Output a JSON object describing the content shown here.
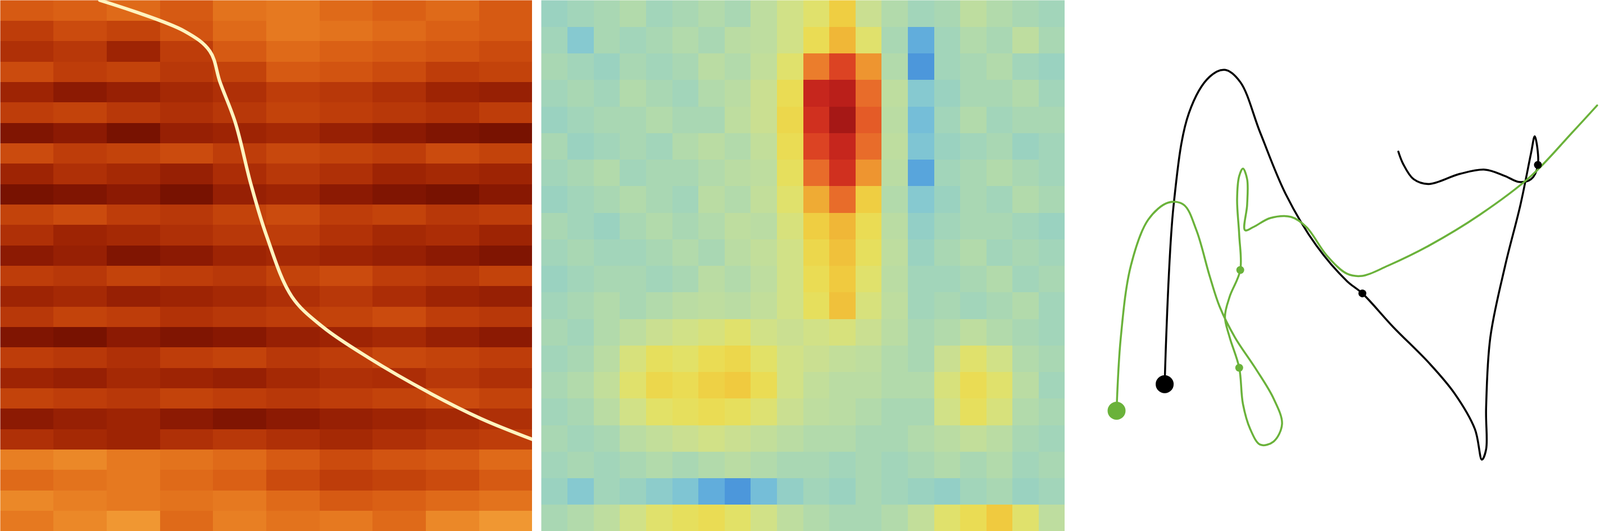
{
  "chart_data": [
    {
      "type": "heatmap",
      "color": "hot",
      "tick_labels": false,
      "xlim": [
        0,
        100
      ],
      "ylim": [
        100,
        0
      ],
      "zlim": [
        0,
        1
      ],
      "cells": [
        [
          0.5,
          0.52,
          0.55,
          0.5,
          0.58,
          0.6,
          0.55,
          0.52,
          0.55,
          0.5
        ],
        [
          0.4,
          0.45,
          0.42,
          0.48,
          0.55,
          0.6,
          0.58,
          0.55,
          0.52,
          0.5
        ],
        [
          0.35,
          0.38,
          0.3,
          0.4,
          0.5,
          0.55,
          0.52,
          0.5,
          0.48,
          0.45
        ],
        [
          0.45,
          0.4,
          0.42,
          0.38,
          0.42,
          0.5,
          0.48,
          0.45,
          0.4,
          0.42
        ],
        [
          0.3,
          0.25,
          0.28,
          0.32,
          0.35,
          0.4,
          0.38,
          0.35,
          0.3,
          0.28
        ],
        [
          0.4,
          0.42,
          0.38,
          0.35,
          0.38,
          0.42,
          0.4,
          0.38,
          0.36,
          0.4
        ],
        [
          0.22,
          0.25,
          0.2,
          0.28,
          0.3,
          0.32,
          0.28,
          0.25,
          0.22,
          0.2
        ],
        [
          0.45,
          0.4,
          0.42,
          0.45,
          0.4,
          0.44,
          0.42,
          0.4,
          0.45,
          0.42
        ],
        [
          0.3,
          0.35,
          0.32,
          0.28,
          0.34,
          0.38,
          0.35,
          0.3,
          0.32,
          0.3
        ],
        [
          0.2,
          0.22,
          0.25,
          0.2,
          0.28,
          0.3,
          0.25,
          0.22,
          0.2,
          0.24
        ],
        [
          0.42,
          0.45,
          0.4,
          0.38,
          0.42,
          0.45,
          0.4,
          0.42,
          0.38,
          0.4
        ],
        [
          0.35,
          0.3,
          0.32,
          0.35,
          0.38,
          0.4,
          0.36,
          0.32,
          0.34,
          0.3
        ],
        [
          0.25,
          0.28,
          0.22,
          0.25,
          0.3,
          0.32,
          0.3,
          0.28,
          0.25,
          0.22
        ],
        [
          0.4,
          0.38,
          0.42,
          0.4,
          0.38,
          0.42,
          0.45,
          0.4,
          0.38,
          0.42
        ],
        [
          0.3,
          0.32,
          0.28,
          0.3,
          0.32,
          0.35,
          0.38,
          0.34,
          0.3,
          0.28
        ],
        [
          0.38,
          0.42,
          0.4,
          0.36,
          0.38,
          0.4,
          0.42,
          0.45,
          0.4,
          0.38
        ],
        [
          0.22,
          0.2,
          0.25,
          0.22,
          0.24,
          0.28,
          0.3,
          0.32,
          0.28,
          0.25
        ],
        [
          0.4,
          0.38,
          0.35,
          0.4,
          0.42,
          0.38,
          0.4,
          0.44,
          0.42,
          0.4
        ],
        [
          0.3,
          0.28,
          0.32,
          0.3,
          0.28,
          0.32,
          0.35,
          0.34,
          0.38,
          0.35
        ],
        [
          0.42,
          0.4,
          0.38,
          0.42,
          0.4,
          0.38,
          0.4,
          0.42,
          0.45,
          0.42
        ],
        [
          0.25,
          0.28,
          0.3,
          0.25,
          0.22,
          0.25,
          0.28,
          0.3,
          0.32,
          0.35
        ],
        [
          0.35,
          0.32,
          0.3,
          0.35,
          0.38,
          0.35,
          0.32,
          0.35,
          0.38,
          0.4
        ],
        [
          0.62,
          0.65,
          0.6,
          0.58,
          0.55,
          0.5,
          0.45,
          0.48,
          0.5,
          0.55
        ],
        [
          0.55,
          0.58,
          0.6,
          0.55,
          0.52,
          0.45,
          0.4,
          0.42,
          0.45,
          0.5
        ],
        [
          0.65,
          0.62,
          0.6,
          0.58,
          0.6,
          0.55,
          0.5,
          0.52,
          0.55,
          0.58
        ],
        [
          0.6,
          0.65,
          0.7,
          0.55,
          0.62,
          0.58,
          0.6,
          0.55,
          0.65,
          0.7
        ]
      ],
      "series": [
        {
          "type": "line",
          "color": "#fff4c0",
          "x": [
            18.7,
            34.6,
            39.4,
            41.3,
            44.2,
            47.1,
            50.0,
            54.8,
            60.6,
            69.2,
            80.8,
            90.4,
            100
          ],
          "y": [
            0,
            5.8,
            9.6,
            15.4,
            23.1,
            34.6,
            44.2,
            55.8,
            61.5,
            67.3,
            74.0,
            78.8,
            82.7
          ]
        }
      ]
    },
    {
      "type": "heatmap",
      "color": "jet",
      "tick_labels": false,
      "xlim": [
        0,
        100
      ],
      "ylim": [
        0,
        100
      ],
      "zlim": [
        0,
        1
      ],
      "cells": [
        [
          0.36,
          0.38,
          0.4,
          0.42,
          0.38,
          0.4,
          0.42,
          0.4,
          0.45,
          0.5,
          0.55,
          0.65,
          0.48,
          0.42,
          0.38,
          0.4,
          0.45,
          0.42,
          0.4,
          0.38
        ],
        [
          0.38,
          0.3,
          0.4,
          0.38,
          0.4,
          0.42,
          0.4,
          0.44,
          0.45,
          0.5,
          0.6,
          0.7,
          0.55,
          0.4,
          0.2,
          0.38,
          0.42,
          0.4,
          0.45,
          0.4
        ],
        [
          0.4,
          0.38,
          0.36,
          0.4,
          0.38,
          0.4,
          0.44,
          0.42,
          0.46,
          0.55,
          0.78,
          0.85,
          0.75,
          0.42,
          0.15,
          0.38,
          0.4,
          0.42,
          0.38,
          0.36
        ],
        [
          0.38,
          0.4,
          0.38,
          0.42,
          0.4,
          0.38,
          0.42,
          0.44,
          0.48,
          0.6,
          0.9,
          0.92,
          0.8,
          0.45,
          0.3,
          0.36,
          0.4,
          0.4,
          0.42,
          0.38
        ],
        [
          0.36,
          0.38,
          0.4,
          0.4,
          0.42,
          0.4,
          0.4,
          0.45,
          0.48,
          0.62,
          0.88,
          0.95,
          0.82,
          0.44,
          0.25,
          0.38,
          0.42,
          0.38,
          0.4,
          0.4
        ],
        [
          0.4,
          0.36,
          0.38,
          0.4,
          0.38,
          0.42,
          0.44,
          0.42,
          0.46,
          0.6,
          0.85,
          0.9,
          0.8,
          0.45,
          0.28,
          0.36,
          0.38,
          0.4,
          0.36,
          0.38
        ],
        [
          0.38,
          0.4,
          0.42,
          0.38,
          0.4,
          0.4,
          0.42,
          0.44,
          0.45,
          0.58,
          0.8,
          0.88,
          0.75,
          0.44,
          0.18,
          0.38,
          0.4,
          0.42,
          0.4,
          0.38
        ],
        [
          0.36,
          0.38,
          0.4,
          0.42,
          0.4,
          0.38,
          0.44,
          0.42,
          0.46,
          0.55,
          0.72,
          0.8,
          0.65,
          0.42,
          0.3,
          0.36,
          0.4,
          0.38,
          0.42,
          0.4
        ],
        [
          0.4,
          0.38,
          0.36,
          0.4,
          0.42,
          0.4,
          0.42,
          0.45,
          0.44,
          0.52,
          0.65,
          0.7,
          0.6,
          0.44,
          0.34,
          0.38,
          0.4,
          0.4,
          0.38,
          0.36
        ],
        [
          0.38,
          0.4,
          0.38,
          0.38,
          0.4,
          0.42,
          0.4,
          0.44,
          0.46,
          0.5,
          0.62,
          0.68,
          0.58,
          0.45,
          0.36,
          0.4,
          0.42,
          0.38,
          0.4,
          0.38
        ],
        [
          0.36,
          0.38,
          0.4,
          0.4,
          0.38,
          0.4,
          0.44,
          0.42,
          0.45,
          0.5,
          0.6,
          0.66,
          0.55,
          0.44,
          0.38,
          0.38,
          0.4,
          0.42,
          0.38,
          0.4
        ],
        [
          0.38,
          0.4,
          0.42,
          0.4,
          0.42,
          0.44,
          0.45,
          0.44,
          0.46,
          0.5,
          0.58,
          0.68,
          0.52,
          0.45,
          0.38,
          0.4,
          0.38,
          0.4,
          0.42,
          0.38
        ],
        [
          0.4,
          0.38,
          0.42,
          0.45,
          0.48,
          0.5,
          0.52,
          0.55,
          0.5,
          0.48,
          0.5,
          0.52,
          0.48,
          0.44,
          0.4,
          0.42,
          0.45,
          0.42,
          0.4,
          0.38
        ],
        [
          0.38,
          0.4,
          0.44,
          0.52,
          0.58,
          0.56,
          0.6,
          0.62,
          0.56,
          0.5,
          0.48,
          0.46,
          0.45,
          0.42,
          0.4,
          0.48,
          0.55,
          0.5,
          0.42,
          0.4
        ],
        [
          0.4,
          0.42,
          0.46,
          0.55,
          0.62,
          0.6,
          0.64,
          0.66,
          0.6,
          0.5,
          0.46,
          0.44,
          0.44,
          0.42,
          0.42,
          0.52,
          0.6,
          0.55,
          0.44,
          0.38
        ],
        [
          0.38,
          0.4,
          0.44,
          0.5,
          0.56,
          0.58,
          0.6,
          0.58,
          0.54,
          0.48,
          0.45,
          0.44,
          0.42,
          0.4,
          0.4,
          0.5,
          0.58,
          0.52,
          0.42,
          0.4
        ],
        [
          0.4,
          0.38,
          0.4,
          0.44,
          0.46,
          0.48,
          0.5,
          0.48,
          0.46,
          0.44,
          0.42,
          0.42,
          0.4,
          0.4,
          0.42,
          0.44,
          0.46,
          0.44,
          0.4,
          0.38
        ],
        [
          0.38,
          0.4,
          0.38,
          0.4,
          0.42,
          0.4,
          0.42,
          0.44,
          0.42,
          0.4,
          0.4,
          0.38,
          0.4,
          0.38,
          0.4,
          0.42,
          0.4,
          0.42,
          0.38,
          0.4
        ],
        [
          0.36,
          0.3,
          0.38,
          0.36,
          0.32,
          0.28,
          0.2,
          0.15,
          0.25,
          0.34,
          0.38,
          0.36,
          0.4,
          0.38,
          0.36,
          0.34,
          0.38,
          0.4,
          0.36,
          0.38
        ],
        [
          0.4,
          0.42,
          0.45,
          0.5,
          0.55,
          0.58,
          0.6,
          0.56,
          0.5,
          0.45,
          0.42,
          0.4,
          0.4,
          0.42,
          0.46,
          0.55,
          0.6,
          0.66,
          0.55,
          0.45
        ]
      ]
    },
    {
      "type": "line",
      "tick_labels": false,
      "xlim": [
        0,
        100
      ],
      "ylim": [
        0,
        100
      ],
      "series": [
        {
          "color": "#000000",
          "marker": "circle",
          "x": [
            17.6,
            19.3,
            22.2,
            26.1,
            29.0,
            31.9,
            35.7,
            40.5,
            46.3,
            52.1,
            55.0,
            60.8,
            67.6,
            72.4,
            76.3,
            77.6,
            78.4,
            78.4,
            79.2,
            82.0,
            84.9,
            86.9,
            87.6,
            88.2,
            86.9,
            84.6,
            82.0,
            78.2,
            73.4,
            67.6,
            64.7,
            62.7,
            61.8
          ],
          "y": [
            27.7,
            61.5,
            78.8,
            85.6,
            86.9,
            84.6,
            75.0,
            63.5,
            53.8,
            47.1,
            44.8,
            38.5,
            31.7,
            26.0,
            19.2,
            13.5,
            15.4,
            23.1,
            36.5,
            50.0,
            61.5,
            71.2,
            74.4,
            69.0,
            66.3,
            65.8,
            66.9,
            68.1,
            67.3,
            65.4,
            66.3,
            69.2,
            71.5
          ],
          "points": {
            "x": [
              55.0,
              88.2
            ],
            "y": [
              44.8,
              69.0
            ]
          }
        },
        {
          "color": "#6ab23a",
          "marker": "circle",
          "x": [
            8.5,
            9.3,
            11.2,
            14.5,
            18.3,
            21.2,
            23.6,
            26.1,
            28.0,
            30.9,
            34.7,
            38.2,
            39.8,
            38.2,
            35.7,
            33.8,
            32.4,
            31.7,
            29.9,
            29.0,
            29.9,
            31.9,
            31.7,
            31.3,
            31.7,
            32.4,
            33.2,
            33.2,
            32.8,
            34.4,
            37.6,
            41.5,
            44.4,
            48.3,
            52.1,
            55.0,
            59.8,
            67.6,
            77.2,
            86.9,
            94.6,
            99.4
          ],
          "y": [
            22.7,
            36.5,
            50.0,
            58.7,
            61.9,
            61.5,
            56.7,
            48.1,
            42.3,
            36.5,
            30.8,
            25.0,
            20.2,
            16.9,
            16.3,
            19.2,
            24.0,
            30.8,
            36.5,
            40.4,
            44.2,
            49.2,
            55.8,
            62.5,
            66.9,
            68.3,
            66.3,
            61.5,
            56.7,
            57.3,
            59.0,
            59.2,
            57.3,
            51.9,
            48.5,
            48.1,
            50.0,
            53.8,
            59.6,
            66.9,
            75.0,
            80.2
          ],
          "points": {
            "x": [
              31.9,
              31.7
            ],
            "y": [
              49.2,
              30.8
            ]
          }
        }
      ]
    }
  ]
}
